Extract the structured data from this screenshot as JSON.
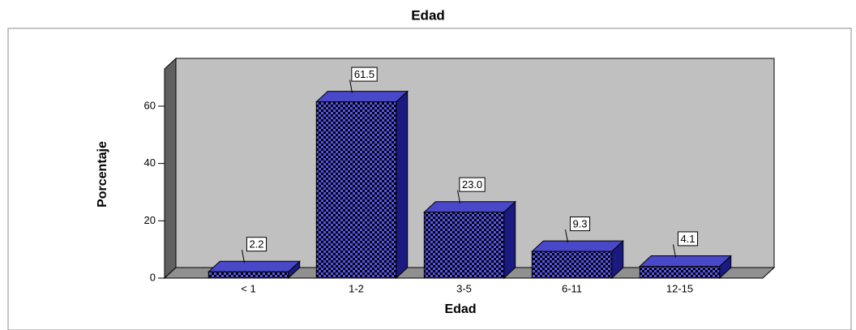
{
  "chart_data": {
    "type": "bar3d",
    "title": "Edad",
    "categories": [
      "< 1",
      "1-2",
      "3-5",
      "6-11",
      "12-15"
    ],
    "values": [
      2.2,
      61.5,
      23.0,
      9.3,
      4.1
    ],
    "value_labels": [
      "2.2",
      "61.5",
      "23.0",
      "9.3",
      "4.1"
    ],
    "color": "#2a2ab8",
    "xlabel": "Edad",
    "ylabel": "Porcentaje",
    "ylim": [
      0,
      73
    ],
    "yticks": [
      0,
      20,
      40,
      60
    ]
  }
}
